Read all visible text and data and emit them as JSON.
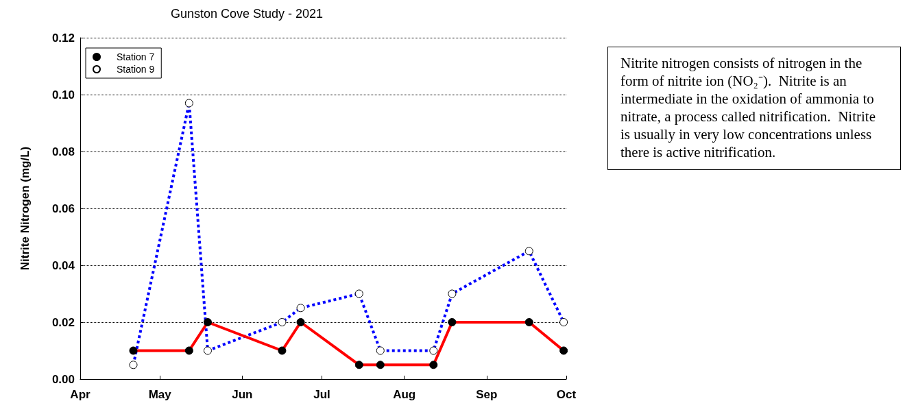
{
  "chart_data": {
    "type": "line",
    "title": "Gunston Cove Study - 2021",
    "ylabel": "Nitrite Nitrogen (mg/L)",
    "x": [
      "2021-04-21",
      "2021-05-12",
      "2021-05-19",
      "2021-06-16",
      "2021-06-23",
      "2021-07-15",
      "2021-07-23",
      "2021-08-12",
      "2021-08-19",
      "2021-09-17",
      "2021-09-30"
    ],
    "series": [
      {
        "name": "Station 7",
        "color": "#ff0000",
        "line_style": "solid",
        "values": [
          0.01,
          0.01,
          0.02,
          0.01,
          0.02,
          0.005,
          0.005,
          0.005,
          0.02,
          0.02,
          0.01
        ]
      },
      {
        "name": "Station 9",
        "color": "#0000ff",
        "line_style": "dotted",
        "values": [
          0.005,
          0.097,
          0.01,
          0.02,
          0.025,
          0.03,
          0.01,
          0.01,
          0.03,
          0.045,
          0.02
        ]
      }
    ],
    "xlim": [
      "2021-04-01",
      "2021-10-01"
    ],
    "xticks": [
      {
        "value": "2021-04-01",
        "label": "Apr"
      },
      {
        "value": "2021-05-01",
        "label": "May"
      },
      {
        "value": "2021-06-01",
        "label": "Jun"
      },
      {
        "value": "2021-07-01",
        "label": "Jul"
      },
      {
        "value": "2021-08-01",
        "label": "Aug"
      },
      {
        "value": "2021-09-01",
        "label": "Sep"
      },
      {
        "value": "2021-10-01",
        "label": "Oct"
      }
    ],
    "ylim": [
      0,
      0.12
    ],
    "yticks": [
      {
        "value": 0,
        "label": "0.00"
      },
      {
        "value": 0.02,
        "label": "0.02"
      },
      {
        "value": 0.04,
        "label": "0.04"
      },
      {
        "value": 0.06,
        "label": "0.06"
      },
      {
        "value": 0.08,
        "label": "0.08"
      },
      {
        "value": 0.1,
        "label": "0.10"
      },
      {
        "value": 0.12,
        "label": "0.12"
      }
    ],
    "grid": "y",
    "legend": "top left",
    "marker": "circle",
    "annotations": [
      "Nitrite nitrogen consists of nitrogen in the form of nitrite ion (NO₂⁻).  Nitrite is an intermediate in the oxidation of ammonia to nitrate, a process called nitrification.  Nitrite is usually in very low concentrations unless there is active nitrification."
    ]
  }
}
